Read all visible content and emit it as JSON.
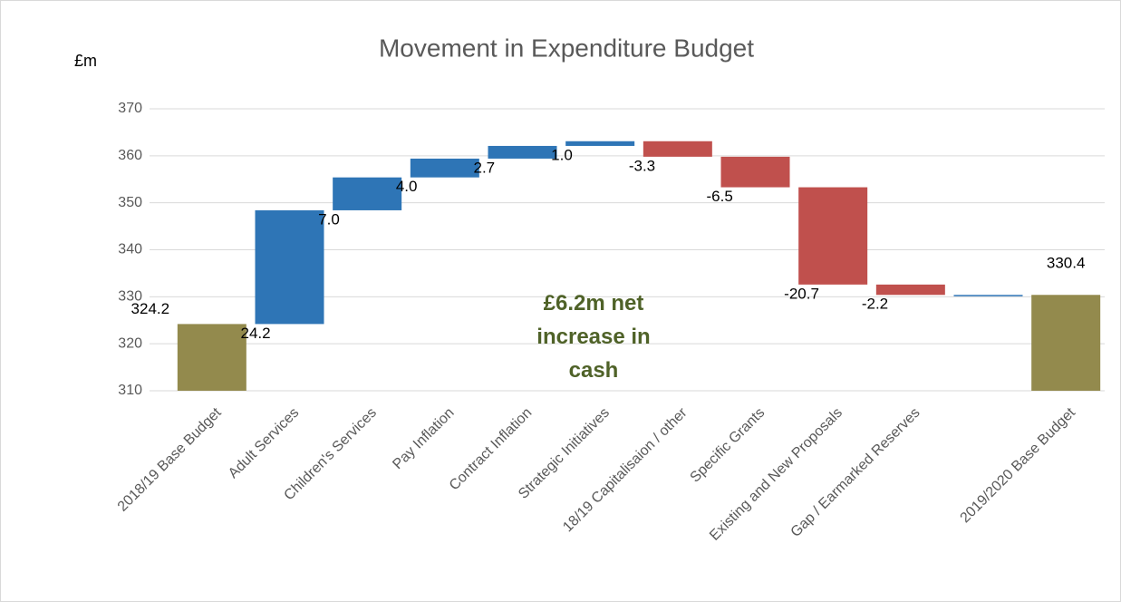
{
  "chart_data": {
    "type": "waterfall",
    "title": "Movement in Expenditure Budget",
    "y_label": "£m",
    "annotation": "£6.2m net increase in cash",
    "categories": [
      "2018/19 Base Budget",
      "Adult Services",
      "Children's Services",
      "Pay Inflation",
      "Contract Inflation",
      "Strategic Initiatives",
      "18/19 Capitalisaion / other",
      "Specific Grants",
      "Existing and New Proposals",
      "Gap / Earmarked Reserves",
      null,
      "2019/2020 Base Budget"
    ],
    "values": [
      324.2,
      24.2,
      7.0,
      4.0,
      2.7,
      1.0,
      -3.3,
      -6.5,
      -20.7,
      -2.2,
      0,
      330.4
    ],
    "value_labels": [
      "324.2",
      "24.2",
      "7.0",
      "4.0",
      "2.7",
      "1.0",
      "-3.3",
      "-6.5",
      "-20.7",
      "-2.2",
      null,
      "330.4"
    ],
    "measure": [
      "total",
      "relative",
      "relative",
      "relative",
      "relative",
      "relative",
      "relative",
      "relative",
      "relative",
      "relative",
      "relative",
      "total"
    ],
    "colors": {
      "total": "#938a4d",
      "increase": "#2e75b6",
      "decrease": "#c0504d"
    },
    "ylim": [
      310,
      370
    ],
    "yticks": [
      310,
      320,
      330,
      340,
      350,
      360,
      370
    ],
    "grid": true
  }
}
